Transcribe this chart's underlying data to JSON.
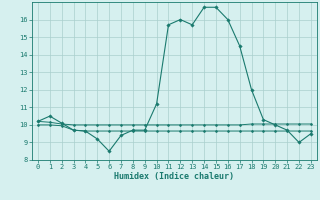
{
  "xlabel": "Humidex (Indice chaleur)",
  "x": [
    0,
    1,
    2,
    3,
    4,
    5,
    6,
    7,
    8,
    9,
    10,
    11,
    12,
    13,
    14,
    15,
    16,
    17,
    18,
    19,
    20,
    21,
    22,
    23
  ],
  "line1": [
    10.2,
    10.5,
    10.1,
    9.7,
    9.65,
    9.2,
    8.5,
    9.4,
    9.7,
    9.7,
    11.2,
    15.7,
    16.0,
    15.7,
    16.7,
    16.7,
    16.0,
    14.5,
    12.0,
    10.3,
    10.0,
    9.7,
    9.0,
    9.5
  ],
  "line2": [
    10.2,
    10.15,
    10.05,
    10.0,
    10.0,
    10.0,
    10.0,
    10.0,
    10.0,
    10.0,
    10.0,
    10.0,
    10.0,
    10.0,
    10.0,
    10.0,
    10.0,
    10.0,
    10.05,
    10.05,
    10.05,
    10.05,
    10.05,
    10.05
  ],
  "line3": [
    10.0,
    10.0,
    9.95,
    9.7,
    9.65,
    9.65,
    9.65,
    9.65,
    9.65,
    9.65,
    9.65,
    9.65,
    9.65,
    9.65,
    9.65,
    9.65,
    9.65,
    9.65,
    9.65,
    9.65,
    9.65,
    9.65,
    9.65,
    9.65
  ],
  "line_color": "#1a7a6e",
  "bg_color": "#d6f0ef",
  "grid_color": "#aacfcd",
  "ylim": [
    8,
    17
  ],
  "xlim": [
    -0.5,
    23.5
  ],
  "yticks": [
    8,
    9,
    10,
    11,
    12,
    13,
    14,
    15,
    16
  ],
  "xticks": [
    0,
    1,
    2,
    3,
    4,
    5,
    6,
    7,
    8,
    9,
    10,
    11,
    12,
    13,
    14,
    15,
    16,
    17,
    18,
    19,
    20,
    21,
    22,
    23
  ],
  "tick_fontsize": 5.0,
  "xlabel_fontsize": 6.0
}
